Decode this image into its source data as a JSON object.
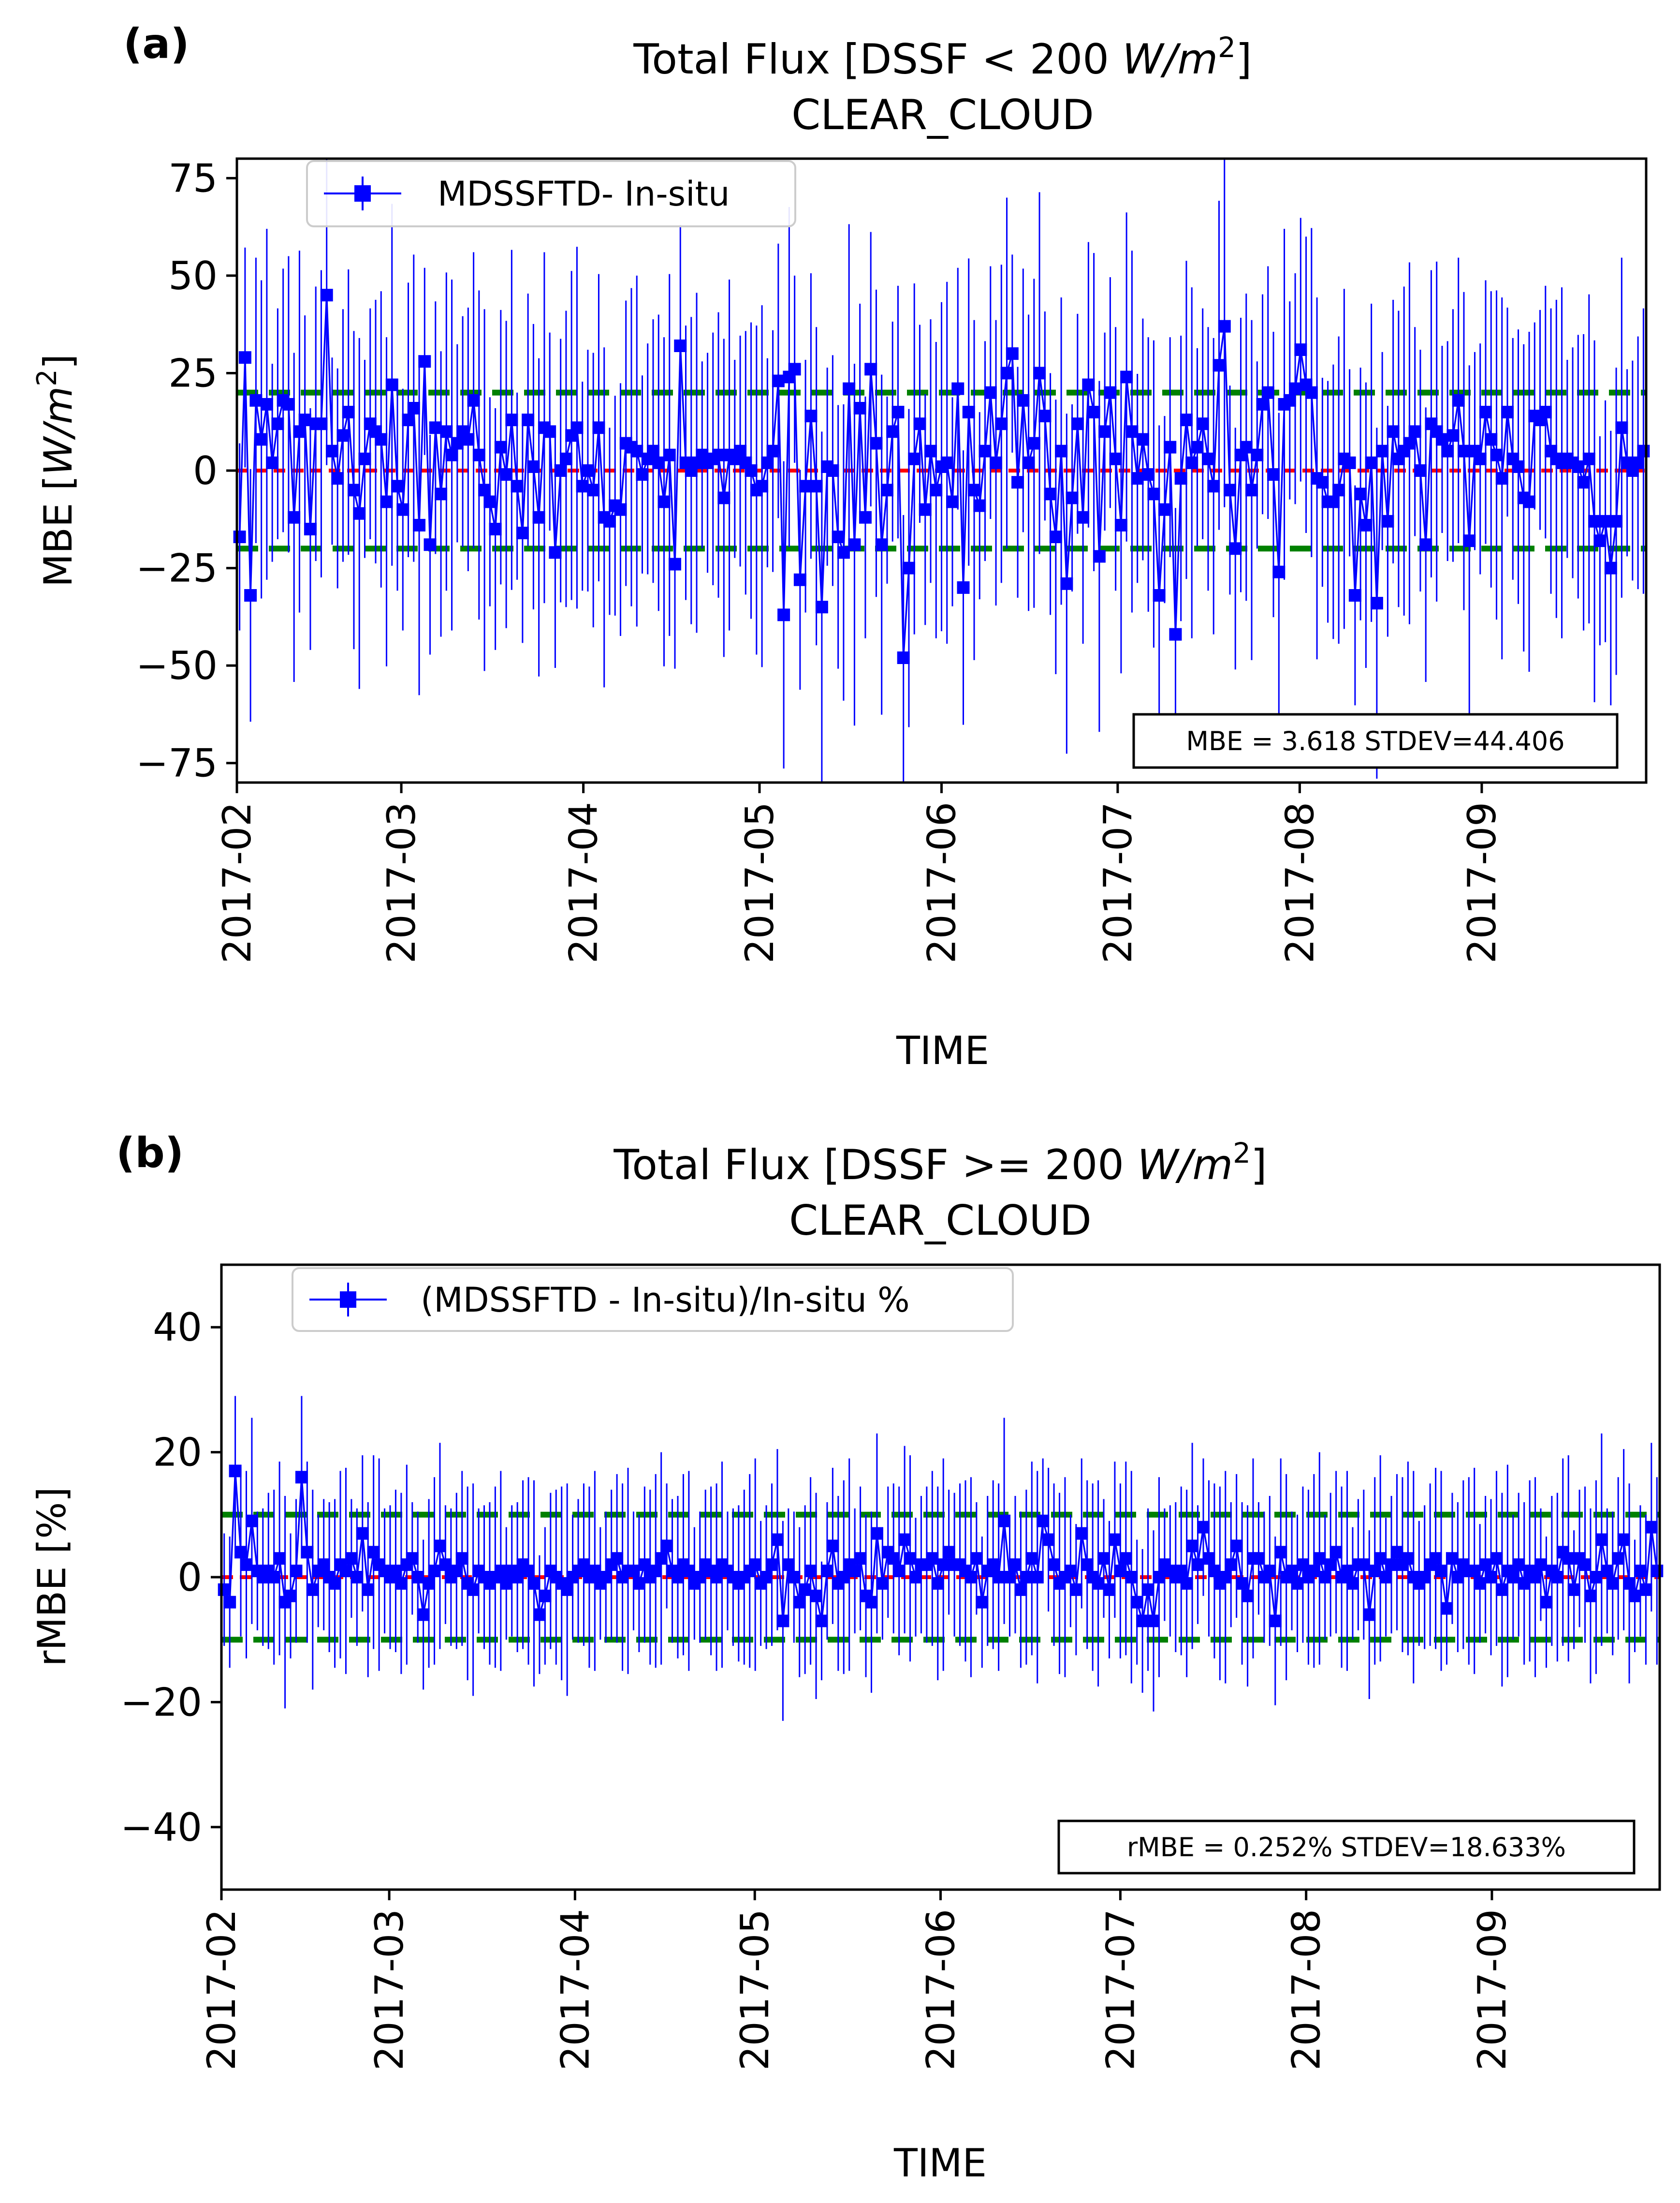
{
  "chart_data": [
    {
      "type": "line",
      "panel_label": "(a)",
      "title_main": "Total Flux  [DSSF < 200 ",
      "title_unit_num": "W/m",
      "title_unit_sup": "2",
      "title_end": "]",
      "subtitle": "CLEAR_CLOUD",
      "xlabel": "TIME",
      "ylabel_main": "MBE [",
      "ylabel_unit": "W/m",
      "ylabel_sup": "2",
      "ylabel_end": "]",
      "ylim": [
        -80,
        80
      ],
      "yticks": [
        {
          "value": 75,
          "label": "75"
        },
        {
          "value": 50,
          "label": "50"
        },
        {
          "value": 25,
          "label": "25"
        },
        {
          "value": 0,
          "label": "0"
        },
        {
          "value": -25,
          "label": "−25"
        },
        {
          "value": -50,
          "label": "−50"
        },
        {
          "value": -75,
          "label": "−75"
        }
      ],
      "xdomain": [
        0,
        240
      ],
      "xticks": [
        {
          "value": 0,
          "label": "2017-02"
        },
        {
          "value": 28,
          "label": "2017-03"
        },
        {
          "value": 59,
          "label": "2017-04"
        },
        {
          "value": 89,
          "label": "2017-05"
        },
        {
          "value": 120,
          "label": "2017-06"
        },
        {
          "value": 150,
          "label": "2017-07"
        },
        {
          "value": 181,
          "label": "2017-08"
        },
        {
          "value": 212,
          "label": "2017-09"
        }
      ],
      "threshold_upper": 20,
      "threshold_lower": -20,
      "legend": "MDSSFTD- In-situ",
      "stats_text": "MBE = 3.618  STDEV=44.406",
      "series": [
        {
          "name": "MDSSFTD- In-situ",
          "color": "#0000ff",
          "values": [
            -17,
            29,
            -32,
            18,
            8,
            17,
            2,
            12,
            18,
            17,
            -12,
            10,
            13,
            -15,
            12,
            12,
            45,
            5,
            -2,
            9,
            15,
            -5,
            -11,
            3,
            12,
            10,
            8,
            -8,
            22,
            -4,
            -10,
            13,
            16,
            -14,
            28,
            -19,
            11,
            -6,
            10,
            4,
            7,
            10,
            8,
            18,
            4,
            -5,
            -8,
            -15,
            6,
            -1,
            13,
            -4,
            -16,
            13,
            1,
            -12,
            11,
            10,
            -21,
            0,
            3,
            9,
            11,
            -4,
            0,
            -5,
            11,
            -12,
            -13,
            -9,
            -10,
            7,
            6,
            5,
            -1,
            3,
            5,
            2,
            -8,
            4,
            -24,
            32,
            2,
            0,
            2,
            4,
            2,
            3,
            4,
            -7,
            4,
            3,
            5,
            2,
            0,
            -5,
            -4,
            2,
            5,
            23,
            -37,
            24,
            26,
            -28,
            -4,
            14,
            -4,
            -35,
            1,
            0,
            -17,
            -21,
            21,
            -19,
            16,
            -12,
            26,
            7,
            -19,
            -5,
            10,
            15,
            -48,
            -25,
            3,
            12,
            -10,
            5,
            -5,
            1,
            2,
            -8,
            21,
            -30,
            15,
            -5,
            -9,
            5,
            20,
            2,
            12,
            25,
            30,
            -3,
            18,
            2,
            7,
            25,
            14,
            -6,
            -17,
            5,
            -29,
            -7,
            12,
            -12,
            22,
            15,
            -22,
            10,
            20,
            3,
            -14,
            24,
            10,
            -2,
            8,
            -1,
            -6,
            -32,
            -10,
            6,
            -42,
            -2,
            13,
            2,
            6,
            12,
            3,
            -4,
            27,
            37,
            -5,
            -20,
            4,
            6,
            -5,
            4,
            17,
            20,
            -1,
            -26,
            17,
            18,
            21,
            31,
            22,
            20,
            -2,
            -3,
            -8,
            -8,
            -5,
            3,
            2,
            -32,
            -6,
            -14,
            2,
            -34,
            5,
            -13,
            10,
            3,
            5,
            7,
            10,
            0,
            -19,
            12,
            10,
            8,
            5,
            9,
            18,
            5,
            -18,
            5,
            3,
            15,
            8,
            4,
            -2,
            15,
            3,
            1,
            -7,
            -8,
            14,
            13,
            15,
            5,
            3,
            2,
            3,
            2,
            1,
            -3,
            3,
            -13,
            -18,
            -13,
            -25,
            -13,
            11,
            2,
            0,
            2,
            5
          ]
        }
      ]
    },
    {
      "type": "line",
      "panel_label": "(b)",
      "title_main": "Total Flux  [DSSF >= 200 ",
      "title_unit_num": "W/m",
      "title_unit_sup": "2",
      "title_end": "]",
      "subtitle": "CLEAR_CLOUD",
      "xlabel": "TIME",
      "ylabel_main": "rMBE [%]",
      "ylim": [
        -50,
        50
      ],
      "yticks": [
        {
          "value": 40,
          "label": "40"
        },
        {
          "value": 20,
          "label": "20"
        },
        {
          "value": 0,
          "label": "0"
        },
        {
          "value": -20,
          "label": "−20"
        },
        {
          "value": -40,
          "label": "−40"
        }
      ],
      "xdomain": [
        0,
        240
      ],
      "xticks": [
        {
          "value": 0,
          "label": "2017-02"
        },
        {
          "value": 28,
          "label": "2017-03"
        },
        {
          "value": 59,
          "label": "2017-04"
        },
        {
          "value": 89,
          "label": "2017-05"
        },
        {
          "value": 120,
          "label": "2017-06"
        },
        {
          "value": 150,
          "label": "2017-07"
        },
        {
          "value": 181,
          "label": "2017-08"
        },
        {
          "value": 212,
          "label": "2017-09"
        }
      ],
      "threshold_upper": 10,
      "threshold_lower": -10,
      "legend": "(MDSSFTD - In-situ)/In-situ %",
      "stats_text": "rMBE = 0.252%   STDEV=18.633%",
      "series": [
        {
          "name": "(MDSSFTD - In-situ)/In-situ %",
          "color": "#0000ff",
          "values": [
            -2,
            -4,
            17,
            4,
            2,
            9,
            1,
            0,
            1,
            0,
            3,
            -4,
            -3,
            1,
            16,
            4,
            -2,
            1,
            2,
            0,
            -1,
            2,
            1,
            3,
            0,
            7,
            -2,
            4,
            2,
            1,
            0,
            1,
            -1,
            2,
            3,
            0,
            -6,
            -1,
            1,
            5,
            2,
            0,
            1,
            3,
            -1,
            -2,
            1,
            0,
            -1,
            0,
            1,
            -1,
            1,
            0,
            2,
            1,
            -1,
            -6,
            -3,
            1,
            0,
            -1,
            -2,
            0,
            1,
            2,
            0,
            1,
            -1,
            0,
            2,
            3,
            0,
            1,
            1,
            -1,
            2,
            0,
            1,
            3,
            5,
            1,
            0,
            2,
            1,
            -1,
            0,
            2,
            1,
            0,
            2,
            1,
            0,
            -1,
            0,
            1,
            2,
            -1,
            0,
            2,
            6,
            -7,
            2,
            0,
            -4,
            -2,
            1,
            -3,
            -7,
            1,
            5,
            -1,
            0,
            2,
            1,
            3,
            -3,
            -4,
            7,
            -1,
            4,
            3,
            1,
            6,
            3,
            0,
            2,
            2,
            3,
            -1,
            2,
            4,
            2,
            2,
            1,
            0,
            3,
            -4,
            1,
            2,
            0,
            9,
            0,
            2,
            -2,
            0,
            3,
            0,
            9,
            6,
            2,
            -1,
            0,
            1,
            -2,
            7,
            2,
            0,
            -1,
            3,
            -2,
            6,
            1,
            3,
            0,
            -4,
            -7,
            -2,
            -7,
            0,
            2,
            1,
            0,
            1,
            -1,
            5,
            2,
            8,
            3,
            1,
            -1,
            0,
            2,
            5,
            -1,
            -3,
            3,
            3,
            0,
            1,
            -7,
            4,
            0,
            1,
            -1,
            2,
            0,
            1,
            3,
            0,
            2,
            4,
            0,
            1,
            -1,
            2,
            2,
            -6,
            1,
            3,
            0,
            2,
            4,
            2,
            3,
            0,
            -1,
            0,
            2,
            3,
            1,
            -5,
            3,
            0,
            2,
            1,
            1,
            -1,
            2,
            0,
            3,
            -2,
            1,
            0,
            2,
            -1,
            1,
            0,
            2,
            -4,
            1,
            0,
            4,
            3,
            -2,
            3,
            2,
            -3,
            0,
            6,
            1,
            -1,
            3,
            6,
            -1,
            -3,
            1,
            -2,
            8,
            1
          ]
        }
      ]
    }
  ]
}
